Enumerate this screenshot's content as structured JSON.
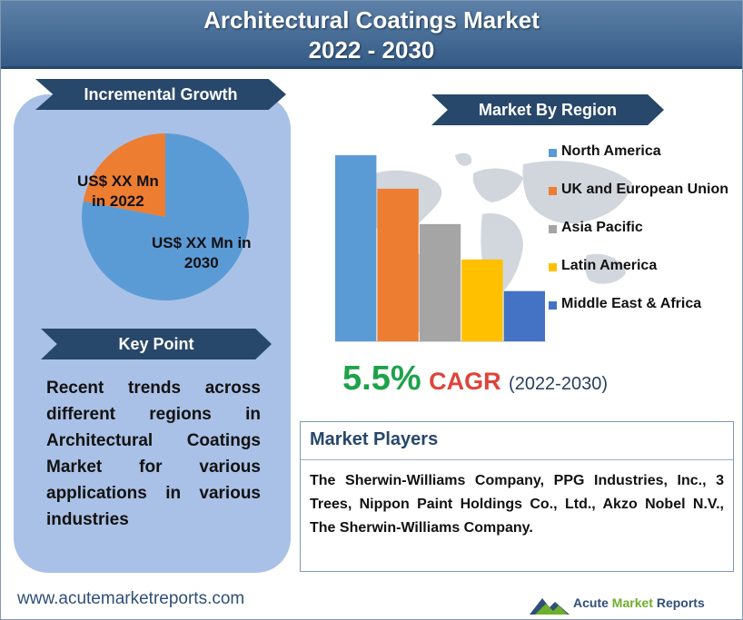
{
  "header": {
    "title_line1": "Architectural Coatings Market",
    "title_line2": "2022 - 2030"
  },
  "incremental_growth": {
    "heading": "Incremental Growth",
    "pie": {
      "segments": [
        {
          "label": "US$ XX Mn in 2022",
          "line1": "US$ XX Mn",
          "line2": "in 2022",
          "fraction": 0.22,
          "color": "#ed7d31"
        },
        {
          "label": "US$ XX Mn in 2030",
          "line1": "US$ XX Mn in",
          "line2": "2030",
          "fraction": 0.78,
          "color": "#5b9bd5"
        }
      ]
    }
  },
  "key_point": {
    "heading": "Key Point",
    "text": "Recent trends across different regions in Architectural Coatings Market for various applications in various industries"
  },
  "market_by_region": {
    "heading": "Market By Region",
    "legend": [
      {
        "name": "North America",
        "color": "#5b9bd5"
      },
      {
        "name": "UK and European Union",
        "color": "#ed7d31"
      },
      {
        "name": "Asia Pacific",
        "color": "#a5a5a5"
      },
      {
        "name": "Latin America",
        "color": "#ffc000"
      },
      {
        "name": "Middle East & Africa",
        "color": "#4472c4"
      }
    ]
  },
  "chart_data": {
    "type": "bar",
    "categories": [
      "North America",
      "UK and European Union",
      "Asia Pacific",
      "Latin America",
      "Middle East & Africa"
    ],
    "values": [
      100,
      82,
      63,
      44,
      27
    ],
    "colors": [
      "#5b9bd5",
      "#ed7d31",
      "#a5a5a5",
      "#ffc000",
      "#4472c4"
    ],
    "ylim": [
      0,
      100
    ],
    "grid": false,
    "legend_position": "right"
  },
  "cagr": {
    "value": "5.5%",
    "label": "CAGR",
    "period": "(2022-2030)"
  },
  "market_players": {
    "heading": "Market Players",
    "text": "The Sherwin-Williams Company, PPG Industries, Inc., 3 Trees, Nippon Paint Holdings Co., Ltd., Akzo Nobel N.V., The Sherwin-Williams Company."
  },
  "footer": {
    "website": "www.acutemarketreports.com",
    "logo_part1": "Acute ",
    "logo_part2": "Market",
    "logo_part3": " Reports"
  }
}
